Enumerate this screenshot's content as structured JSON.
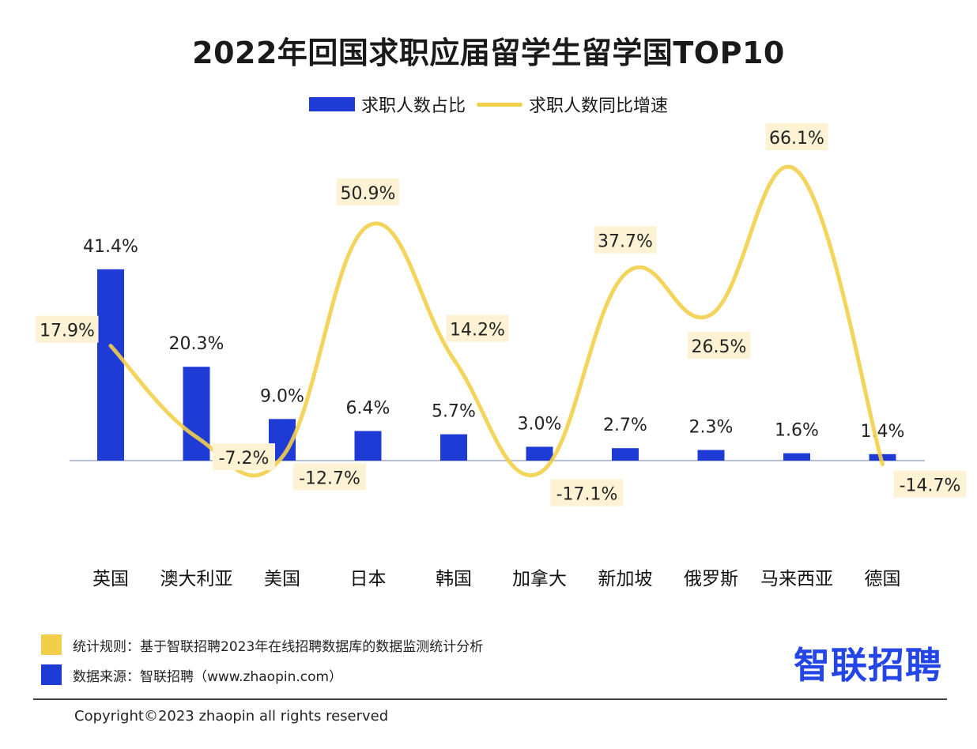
{
  "chart_data": {
    "type": "bar",
    "title": "2022年回国求职应届留学生留学国TOP10",
    "categories": [
      "英国",
      "澳大利亚",
      "美国",
      "日本",
      "韩国",
      "加拿大",
      "新加坡",
      "俄罗斯",
      "马来西亚",
      "德国"
    ],
    "series": [
      {
        "name": "求职人数占比",
        "type": "bar",
        "color": "#1f3bd6",
        "values": [
          41.4,
          20.3,
          9.0,
          6.4,
          5.7,
          3.0,
          2.7,
          2.3,
          1.6,
          1.4
        ],
        "labels": [
          "41.4%",
          "20.3%",
          "9.0%",
          "6.4%",
          "5.7%",
          "3.0%",
          "2.7%",
          "2.3%",
          "1.6%",
          "1.4%"
        ]
      },
      {
        "name": "求职人数同比增速",
        "type": "line",
        "smooth": true,
        "color": "#f2cf4a",
        "values": [
          17.9,
          -7.2,
          -12.7,
          50.9,
          14.2,
          -17.1,
          37.7,
          26.5,
          66.1,
          -14.7
        ],
        "labels": [
          "17.9%",
          "-7.2%",
          "-12.7%",
          "50.9%",
          "14.2%",
          "-17.1%",
          "37.7%",
          "26.5%",
          "66.1%",
          "-14.7%"
        ]
      }
    ],
    "legend_position": "top-center",
    "grid": false
  },
  "notes": {
    "rule_label": "统计规则：基于智联招聘2023年在线招聘数据库的数据监测统计分析",
    "source_label": "数据来源：智联招聘（www.zhaopin.com）",
    "rule_color": "#f2cf4a",
    "source_color": "#1f3bd6"
  },
  "brand": "智联招聘",
  "copyright": "Copyright©2023 zhaopin all rights reserved"
}
